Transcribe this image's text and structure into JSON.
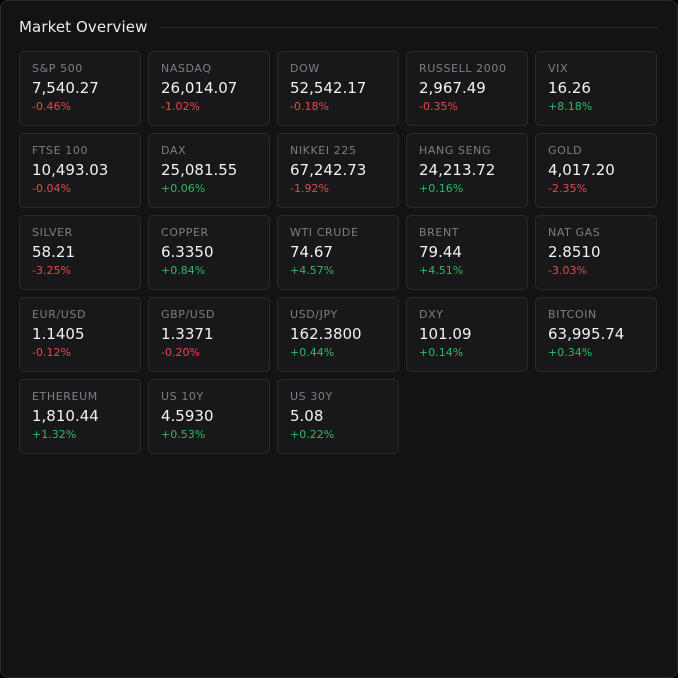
{
  "header": {
    "title": "Market Overview"
  },
  "colors": {
    "up": "#30b867",
    "down": "#e5484d"
  },
  "tiles": [
    {
      "name": "S&P 500",
      "value": "7,540.27",
      "change": "-0.46%",
      "dir": "down"
    },
    {
      "name": "NASDAQ",
      "value": "26,014.07",
      "change": "-1.02%",
      "dir": "down"
    },
    {
      "name": "DOW",
      "value": "52,542.17",
      "change": "-0.18%",
      "dir": "down"
    },
    {
      "name": "RUSSELL 2000",
      "value": "2,967.49",
      "change": "-0.35%",
      "dir": "down"
    },
    {
      "name": "VIX",
      "value": "16.26",
      "change": "+8.18%",
      "dir": "up"
    },
    {
      "name": "FTSE 100",
      "value": "10,493.03",
      "change": "-0.04%",
      "dir": "down"
    },
    {
      "name": "DAX",
      "value": "25,081.55",
      "change": "+0.06%",
      "dir": "up"
    },
    {
      "name": "NIKKEI 225",
      "value": "67,242.73",
      "change": "-1.92%",
      "dir": "down"
    },
    {
      "name": "HANG SENG",
      "value": "24,213.72",
      "change": "+0.16%",
      "dir": "up"
    },
    {
      "name": "GOLD",
      "value": "4,017.20",
      "change": "-2.35%",
      "dir": "down"
    },
    {
      "name": "SILVER",
      "value": "58.21",
      "change": "-3.25%",
      "dir": "down"
    },
    {
      "name": "COPPER",
      "value": "6.3350",
      "change": "+0.84%",
      "dir": "up"
    },
    {
      "name": "WTI CRUDE",
      "value": "74.67",
      "change": "+4.57%",
      "dir": "up"
    },
    {
      "name": "BRENT",
      "value": "79.44",
      "change": "+4.51%",
      "dir": "up"
    },
    {
      "name": "NAT GAS",
      "value": "2.8510",
      "change": "-3.03%",
      "dir": "down"
    },
    {
      "name": "EUR/USD",
      "value": "1.1405",
      "change": "-0.12%",
      "dir": "down"
    },
    {
      "name": "GBP/USD",
      "value": "1.3371",
      "change": "-0.20%",
      "dir": "down"
    },
    {
      "name": "USD/JPY",
      "value": "162.3800",
      "change": "+0.44%",
      "dir": "up"
    },
    {
      "name": "DXY",
      "value": "101.09",
      "change": "+0.14%",
      "dir": "up"
    },
    {
      "name": "BITCOIN",
      "value": "63,995.74",
      "change": "+0.34%",
      "dir": "up"
    },
    {
      "name": "ETHEREUM",
      "value": "1,810.44",
      "change": "+1.32%",
      "dir": "up"
    },
    {
      "name": "US 10Y",
      "value": "4.5930",
      "change": "+0.53%",
      "dir": "up"
    },
    {
      "name": "US 30Y",
      "value": "5.08",
      "change": "+0.22%",
      "dir": "up"
    }
  ]
}
